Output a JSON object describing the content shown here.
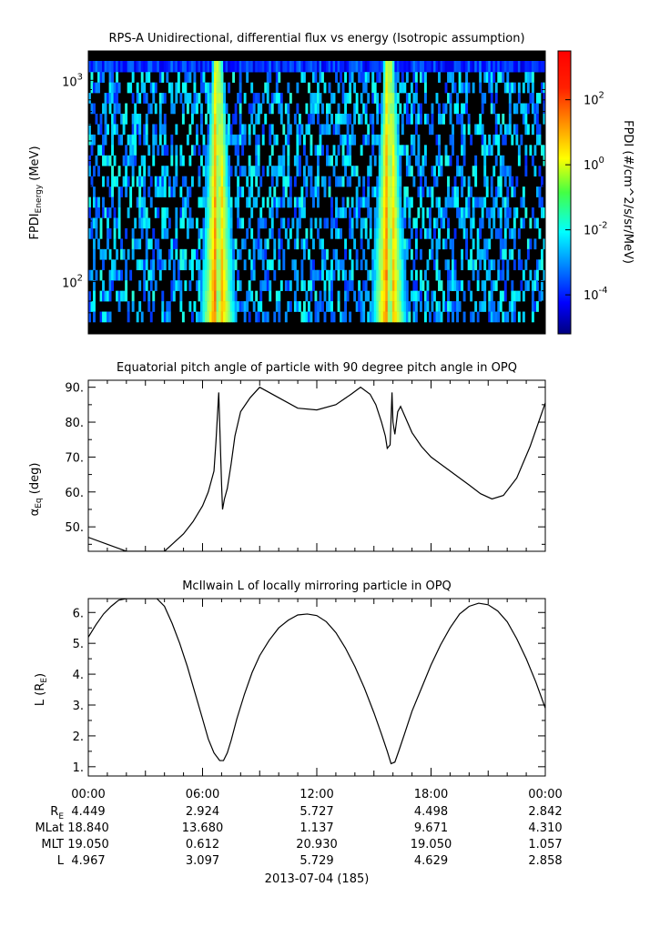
{
  "chart_data": [
    {
      "type": "heatmap",
      "title": "RPS-A Unidirectional, differential flux vs energy (Isotropic assumption)",
      "ylabel_main": "FPDI",
      "ylabel_sub": "Energy",
      "ylabel_unit": " (MeV)",
      "yscale": "log",
      "ylim": [
        55,
        1400
      ],
      "y_ticks": [
        {
          "base": "10",
          "exp": "3",
          "value": 1000
        },
        {
          "base": "10",
          "exp": "2",
          "value": 100
        }
      ],
      "xlim_hours": [
        0,
        24
      ],
      "band_centers_hours": [
        6.8,
        15.8
      ],
      "colorbar": {
        "label": "FPDI (#/cm^2/s/sr/MeV)",
        "scale": "log",
        "range_log10": [
          -5.2,
          3.5
        ],
        "ticks": [
          {
            "base": "10",
            "exp": "2",
            "value_log10": 2
          },
          {
            "base": "10",
            "exp": "0",
            "value_log10": 0
          },
          {
            "base": "10",
            "exp": "-2",
            "value_log10": -2
          },
          {
            "base": "10",
            "exp": "-4",
            "value_log10": -4
          }
        ]
      }
    },
    {
      "type": "line",
      "title": "Equatorial pitch angle of particle with 90 degree pitch angle in OPQ",
      "ylabel_main": "α",
      "ylabel_sub": "Eq",
      "ylabel_unit": " (deg)",
      "ylim": [
        43,
        92
      ],
      "y_ticks": [
        "90.",
        "80.",
        "70.",
        "60.",
        "50."
      ],
      "y_tick_values": [
        90,
        80,
        70,
        60,
        50
      ],
      "x_hours": [
        0,
        1.0,
        2.0,
        3.5,
        4.0,
        4.5,
        5.0,
        5.5,
        6.0,
        6.3,
        6.6,
        6.7,
        6.85,
        7.0,
        7.05,
        7.15,
        7.3,
        7.5,
        7.7,
        8.0,
        8.5,
        9.0,
        10.0,
        11.0,
        12.0,
        13.0,
        13.8,
        14.3,
        14.8,
        15.1,
        15.4,
        15.6,
        15.7,
        15.85,
        15.95,
        16.0,
        16.1,
        16.25,
        16.4,
        16.6,
        17.0,
        17.5,
        18.0,
        19.0,
        20.0,
        20.6,
        21.2,
        21.8,
        22.5,
        23.2,
        24.0
      ],
      "y": [
        47,
        45,
        43,
        43,
        43,
        45.5,
        48,
        51.5,
        56,
        60,
        66,
        74,
        88.5,
        62,
        55,
        58,
        61,
        68,
        76,
        83,
        87,
        90,
        87,
        84,
        83.5,
        85,
        88,
        90,
        88,
        85,
        80,
        76,
        72.5,
        73.5,
        88.5,
        80,
        76.5,
        83,
        84.5,
        82,
        77,
        73,
        70,
        66,
        62,
        59.5,
        58,
        59,
        64,
        73,
        85.5
      ]
    },
    {
      "type": "line",
      "title": "McIlwain L of locally mirroring particle in OPQ",
      "ylabel_main": "L (R",
      "ylabel_sub": "E",
      "ylabel_unit": ")",
      "ylim": [
        0.7,
        6.45
      ],
      "y_ticks": [
        "6.",
        "5.",
        "4.",
        "3.",
        "2.",
        "1."
      ],
      "y_tick_values": [
        6,
        5,
        4,
        3,
        2,
        1
      ],
      "x_hours": [
        0,
        0.4,
        0.8,
        1.2,
        1.6,
        2.0,
        3.0,
        3.6,
        4.0,
        4.4,
        4.8,
        5.2,
        5.6,
        6.0,
        6.3,
        6.6,
        6.9,
        7.1,
        7.3,
        7.5,
        7.8,
        8.2,
        8.6,
        9.0,
        9.5,
        10.0,
        10.5,
        11.0,
        11.5,
        12.0,
        12.5,
        13.0,
        13.5,
        14.0,
        14.5,
        15.0,
        15.4,
        15.7,
        15.9,
        16.1,
        16.3,
        16.6,
        17.0,
        17.5,
        18.0,
        18.5,
        19.0,
        19.5,
        20.0,
        20.5,
        21.0,
        21.5,
        22.0,
        22.5,
        23.0,
        23.5,
        24.0
      ],
      "y": [
        5.2,
        5.6,
        5.95,
        6.2,
        6.4,
        6.45,
        6.45,
        6.45,
        6.2,
        5.65,
        5.0,
        4.25,
        3.4,
        2.55,
        1.9,
        1.45,
        1.2,
        1.2,
        1.45,
        1.85,
        2.55,
        3.35,
        4.05,
        4.6,
        5.1,
        5.5,
        5.75,
        5.92,
        5.95,
        5.9,
        5.7,
        5.35,
        4.85,
        4.25,
        3.55,
        2.75,
        2.05,
        1.5,
        1.1,
        1.15,
        1.5,
        2.05,
        2.8,
        3.55,
        4.3,
        4.95,
        5.5,
        5.95,
        6.2,
        6.3,
        6.25,
        6.05,
        5.7,
        5.15,
        4.5,
        3.75,
        2.9
      ]
    }
  ],
  "x_axis": {
    "labels": [
      "00:00",
      "06:00",
      "12:00",
      "18:00",
      "00:00"
    ],
    "label_hours": [
      0,
      6,
      12,
      18,
      24
    ],
    "minor_step_hours": 1,
    "date_label": "2013-07-04 (185)"
  },
  "ephemeris": {
    "row_labels": [
      {
        "main": "R",
        "sub": "E"
      },
      {
        "main": "MLat",
        "sub": ""
      },
      {
        "main": "MLT",
        "sub": ""
      },
      {
        "main": "L",
        "sub": ""
      }
    ],
    "values": [
      [
        "4.449",
        "2.924",
        "5.727",
        "4.498",
        "2.842"
      ],
      [
        "18.840",
        "13.680",
        "1.137",
        "9.671",
        "4.310"
      ],
      [
        "19.050",
        "0.612",
        "20.930",
        "19.050",
        "1.057"
      ],
      [
        "4.967",
        "3.097",
        "5.729",
        "4.629",
        "2.858"
      ]
    ]
  }
}
